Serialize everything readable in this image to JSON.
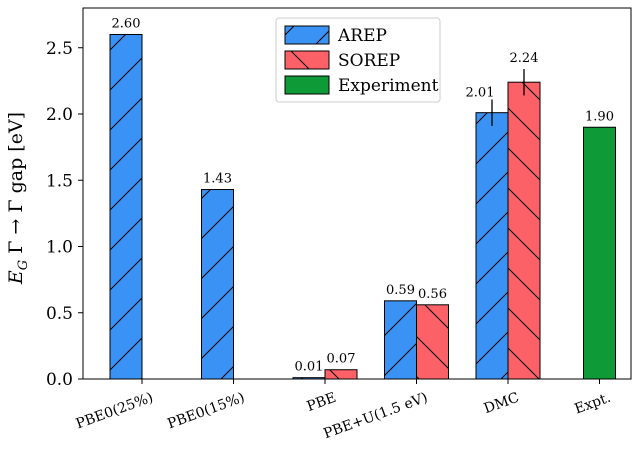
{
  "chart_data": {
    "type": "bar",
    "ylabel": "E_G Γ → Γ gap [eV]",
    "ylim": [
      0,
      2.8
    ],
    "yticks": [
      0.0,
      0.5,
      1.0,
      1.5,
      2.0,
      2.5
    ],
    "ytick_labels": [
      "0.0",
      "0.5",
      "1.0",
      "1.5",
      "2.0",
      "2.5"
    ],
    "categories": [
      "PBE0(25%)",
      "PBE0(15%)",
      "PBE",
      "PBE+U(1.5 eV)",
      "DMC",
      "Expt."
    ],
    "legend_position": "top-center",
    "series": [
      {
        "name": "AREP",
        "color": "#3a93f4",
        "hatch": "/",
        "values": [
          2.6,
          1.43,
          0.01,
          0.59,
          2.01,
          null
        ],
        "labels": [
          "2.60",
          "1.43",
          "0.01",
          "0.59",
          "2.01",
          ""
        ]
      },
      {
        "name": "SOREP",
        "color": "#fb6167",
        "hatch": "\\",
        "values": [
          null,
          null,
          0.07,
          0.56,
          2.24,
          null
        ],
        "labels": [
          "",
          "",
          "0.07",
          "0.56",
          "2.24",
          ""
        ]
      },
      {
        "name": "Experiment",
        "color": "#0e9a37",
        "hatch": "",
        "values": [
          null,
          null,
          null,
          null,
          null,
          1.9
        ],
        "labels": [
          "",
          "",
          "",
          "",
          "",
          "1.90"
        ]
      }
    ],
    "error_bars": {
      "series": [
        "AREP",
        "SOREP"
      ],
      "category": "DMC",
      "values": [
        0.1,
        0.1
      ]
    }
  }
}
